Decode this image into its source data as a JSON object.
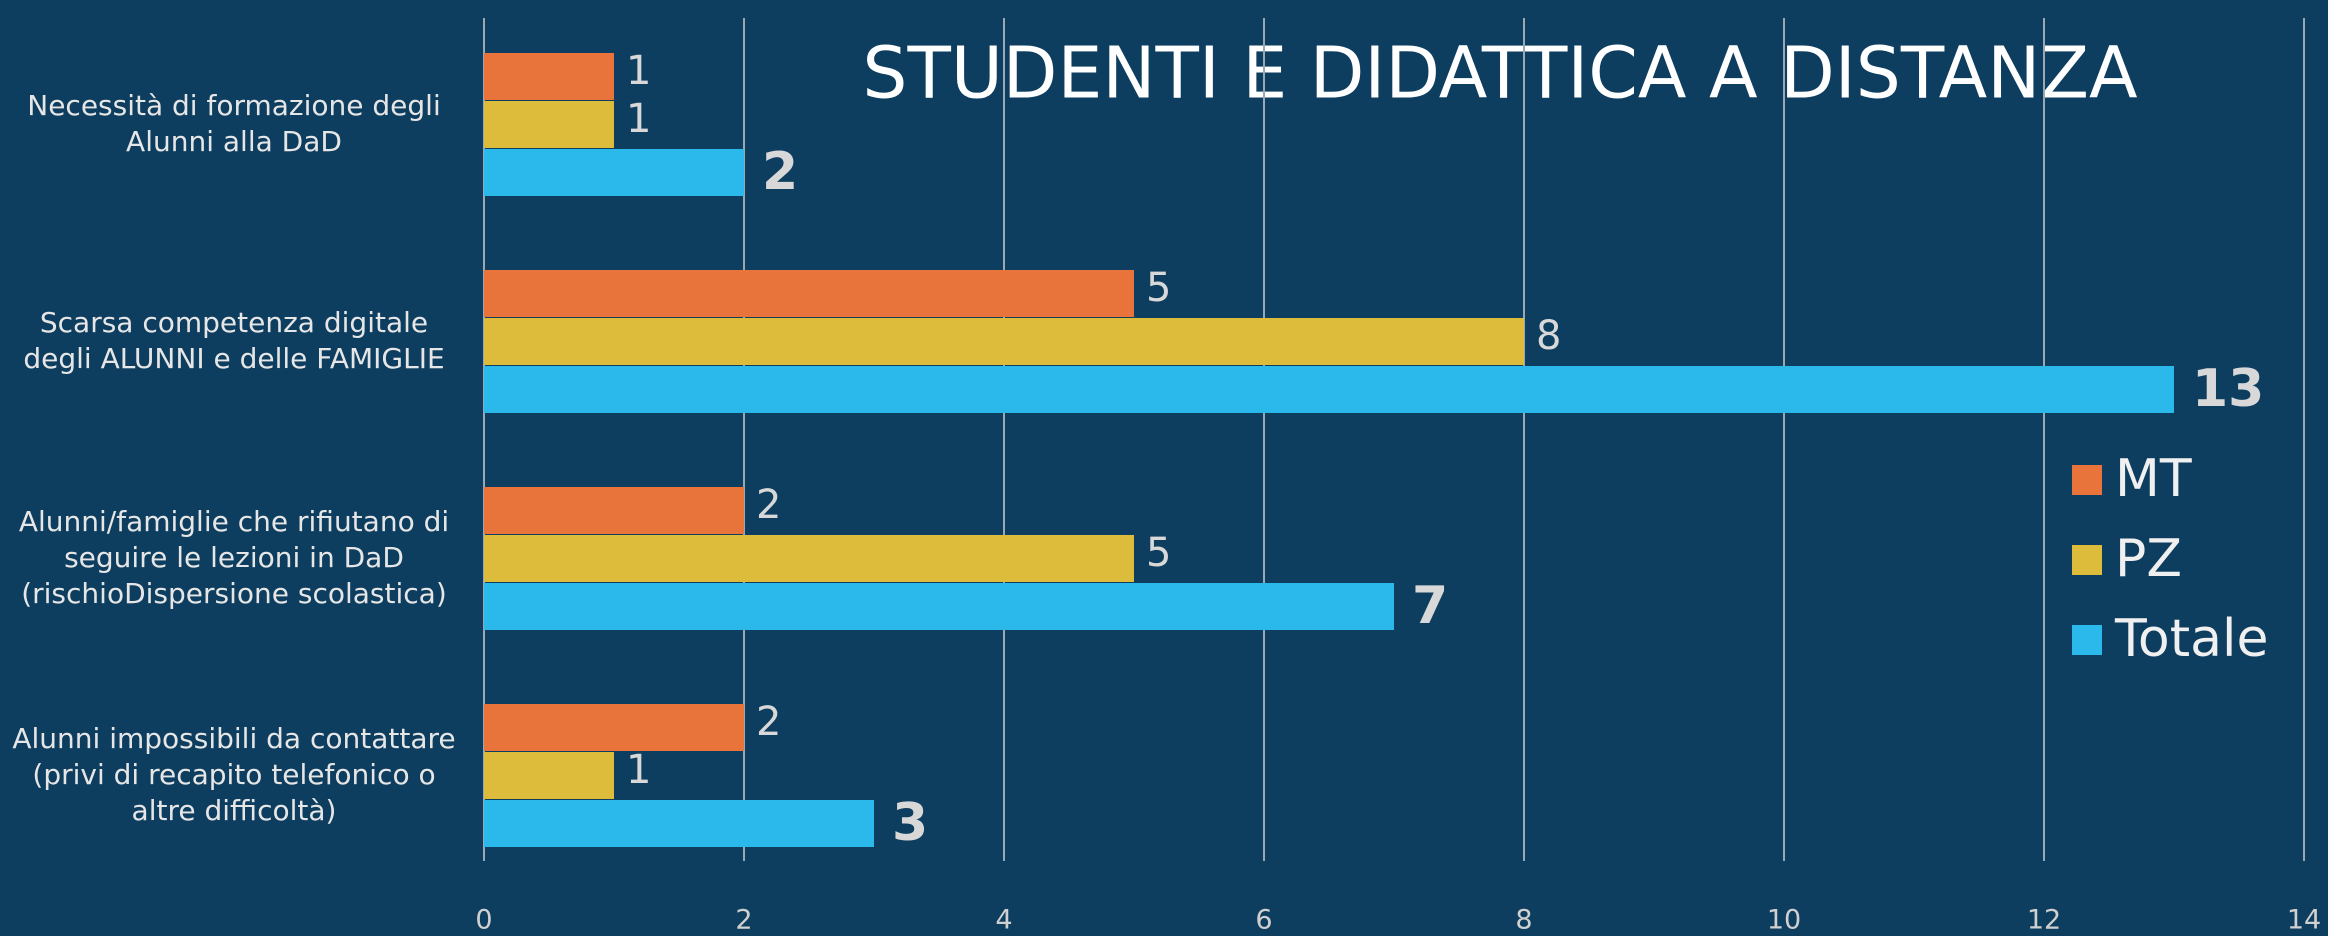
{
  "chart_data": {
    "type": "bar",
    "orientation": "horizontal",
    "title": "STUDENTI E DIDATTICA A DISTANZA",
    "categories": [
      "Necessità di formazione degli\nAlunni alla DaD",
      "Scarsa competenza digitale\ndegli ALUNNI e delle FAMIGLIE",
      "Alunni/famiglie che rifiutano di\nseguire le lezioni in DaD\n(rischioDispersione scolastica)",
      "Alunni impossibili da contattare\n(privi di recapito telefonico o\naltre difficoltà)"
    ],
    "series": [
      {
        "name": "MT",
        "color": "#e8743b",
        "values": [
          1,
          5,
          2,
          2
        ]
      },
      {
        "name": "PZ",
        "color": "#dcbc3a",
        "values": [
          1,
          8,
          5,
          1
        ]
      },
      {
        "name": "Totale",
        "color": "#2bb9ec",
        "values": [
          2,
          13,
          7,
          3
        ]
      }
    ],
    "xlim": [
      0,
      14
    ],
    "xticks": [
      0,
      2,
      4,
      6,
      8,
      10,
      12,
      14
    ],
    "grid": true,
    "legend": "right"
  }
}
